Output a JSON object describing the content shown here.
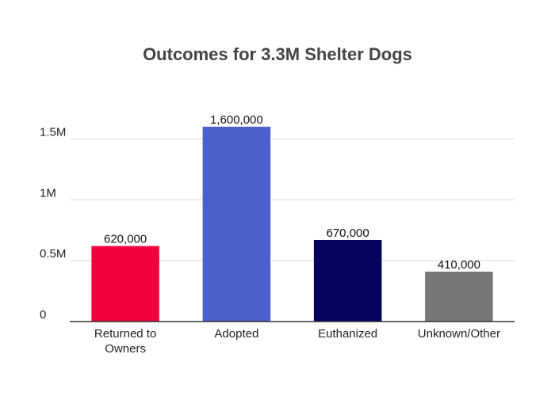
{
  "chart_data": {
    "type": "bar",
    "title": "Outcomes for 3.3M Shelter Dogs",
    "xlabel": "",
    "ylabel": "",
    "categories": [
      [
        "Returned to",
        "Owners"
      ],
      [
        "Adopted"
      ],
      [
        "Euthanized"
      ],
      [
        "Unknown/Other"
      ]
    ],
    "values": [
      620000,
      1600000,
      670000,
      410000
    ],
    "data_labels": [
      "620,000",
      "1,600,000",
      "670,000",
      "410,000"
    ],
    "colors": [
      "#f2003c",
      "#4a60cc",
      "#04035e",
      "#777777"
    ],
    "yticks": [
      {
        "value": 0,
        "label": "0"
      },
      {
        "value": 500000,
        "label": "0.5M"
      },
      {
        "value": 1000000,
        "label": "1M"
      },
      {
        "value": 1500000,
        "label": "1.5M"
      }
    ],
    "ylim": [
      0,
      1600000
    ],
    "grid": true,
    "legend": "none"
  }
}
